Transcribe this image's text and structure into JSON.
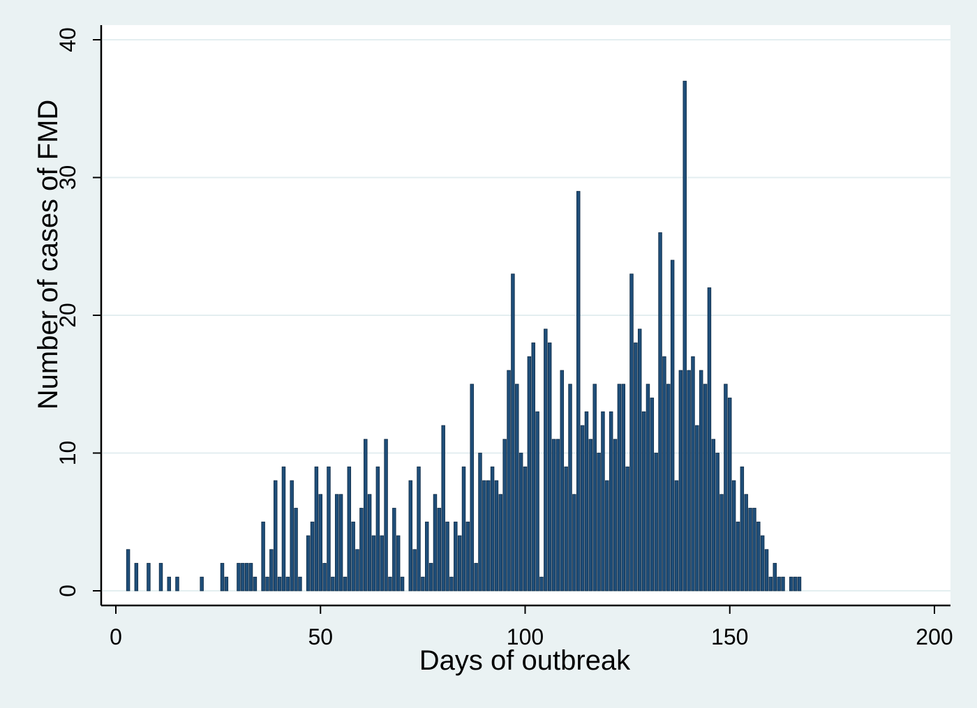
{
  "chart_data": {
    "type": "bar",
    "xlabel": "Days of outbreak",
    "ylabel": "Number of cases of FMD",
    "xlim": [
      0,
      200
    ],
    "ylim": [
      0,
      40
    ],
    "x_ticks": [
      0,
      50,
      100,
      150,
      200
    ],
    "y_ticks": [
      0,
      10,
      20,
      30,
      40
    ],
    "grid": "horizontal",
    "bar_color": "#1f4e79",
    "x": [
      3,
      5,
      8,
      11,
      13,
      15,
      21,
      26,
      27,
      30,
      31,
      32,
      33,
      34,
      36,
      37,
      38,
      39,
      40,
      41,
      42,
      43,
      44,
      45,
      47,
      48,
      49,
      50,
      51,
      52,
      53,
      54,
      55,
      56,
      57,
      58,
      59,
      60,
      61,
      62,
      63,
      64,
      65,
      66,
      67,
      68,
      69,
      70,
      72,
      73,
      74,
      75,
      76,
      77,
      78,
      79,
      80,
      81,
      82,
      83,
      84,
      85,
      86,
      87,
      88,
      89,
      90,
      91,
      92,
      93,
      94,
      95,
      96,
      97,
      98,
      99,
      100,
      101,
      102,
      103,
      104,
      105,
      106,
      107,
      108,
      109,
      110,
      111,
      112,
      113,
      114,
      115,
      116,
      117,
      118,
      119,
      120,
      121,
      122,
      123,
      124,
      125,
      126,
      127,
      128,
      129,
      130,
      131,
      132,
      133,
      134,
      135,
      136,
      137,
      138,
      139,
      140,
      141,
      142,
      143,
      144,
      145,
      146,
      147,
      148,
      149,
      150,
      151,
      152,
      153,
      154,
      155,
      156,
      157,
      158,
      159,
      160,
      161,
      162,
      163,
      165,
      166,
      167
    ],
    "values": [
      3,
      2,
      2,
      2,
      1,
      1,
      1,
      2,
      1,
      2,
      2,
      2,
      2,
      1,
      5,
      1,
      3,
      8,
      1,
      9,
      1,
      8,
      6,
      1,
      4,
      5,
      9,
      7,
      2,
      9,
      1,
      7,
      7,
      1,
      9,
      5,
      3,
      6,
      11,
      7,
      4,
      9,
      4,
      11,
      1,
      6,
      4,
      1,
      8,
      3,
      9,
      1,
      5,
      2,
      7,
      6,
      12,
      5,
      1,
      5,
      4,
      9,
      5,
      15,
      2,
      10,
      8,
      8,
      9,
      8,
      7,
      11,
      16,
      23,
      15,
      10,
      9,
      17,
      18,
      13,
      1,
      19,
      18,
      11,
      11,
      16,
      9,
      15,
      7,
      29,
      12,
      13,
      11,
      15,
      10,
      13,
      8,
      13,
      11,
      15,
      15,
      9,
      23,
      18,
      19,
      13,
      15,
      14,
      10,
      26,
      17,
      15,
      24,
      8,
      16,
      37,
      16,
      17,
      12,
      16,
      15,
      22,
      11,
      10,
      7,
      15,
      14,
      8,
      5,
      9,
      7,
      6,
      6,
      5,
      4,
      3,
      1,
      2,
      1,
      1,
      1,
      1,
      1
    ]
  }
}
